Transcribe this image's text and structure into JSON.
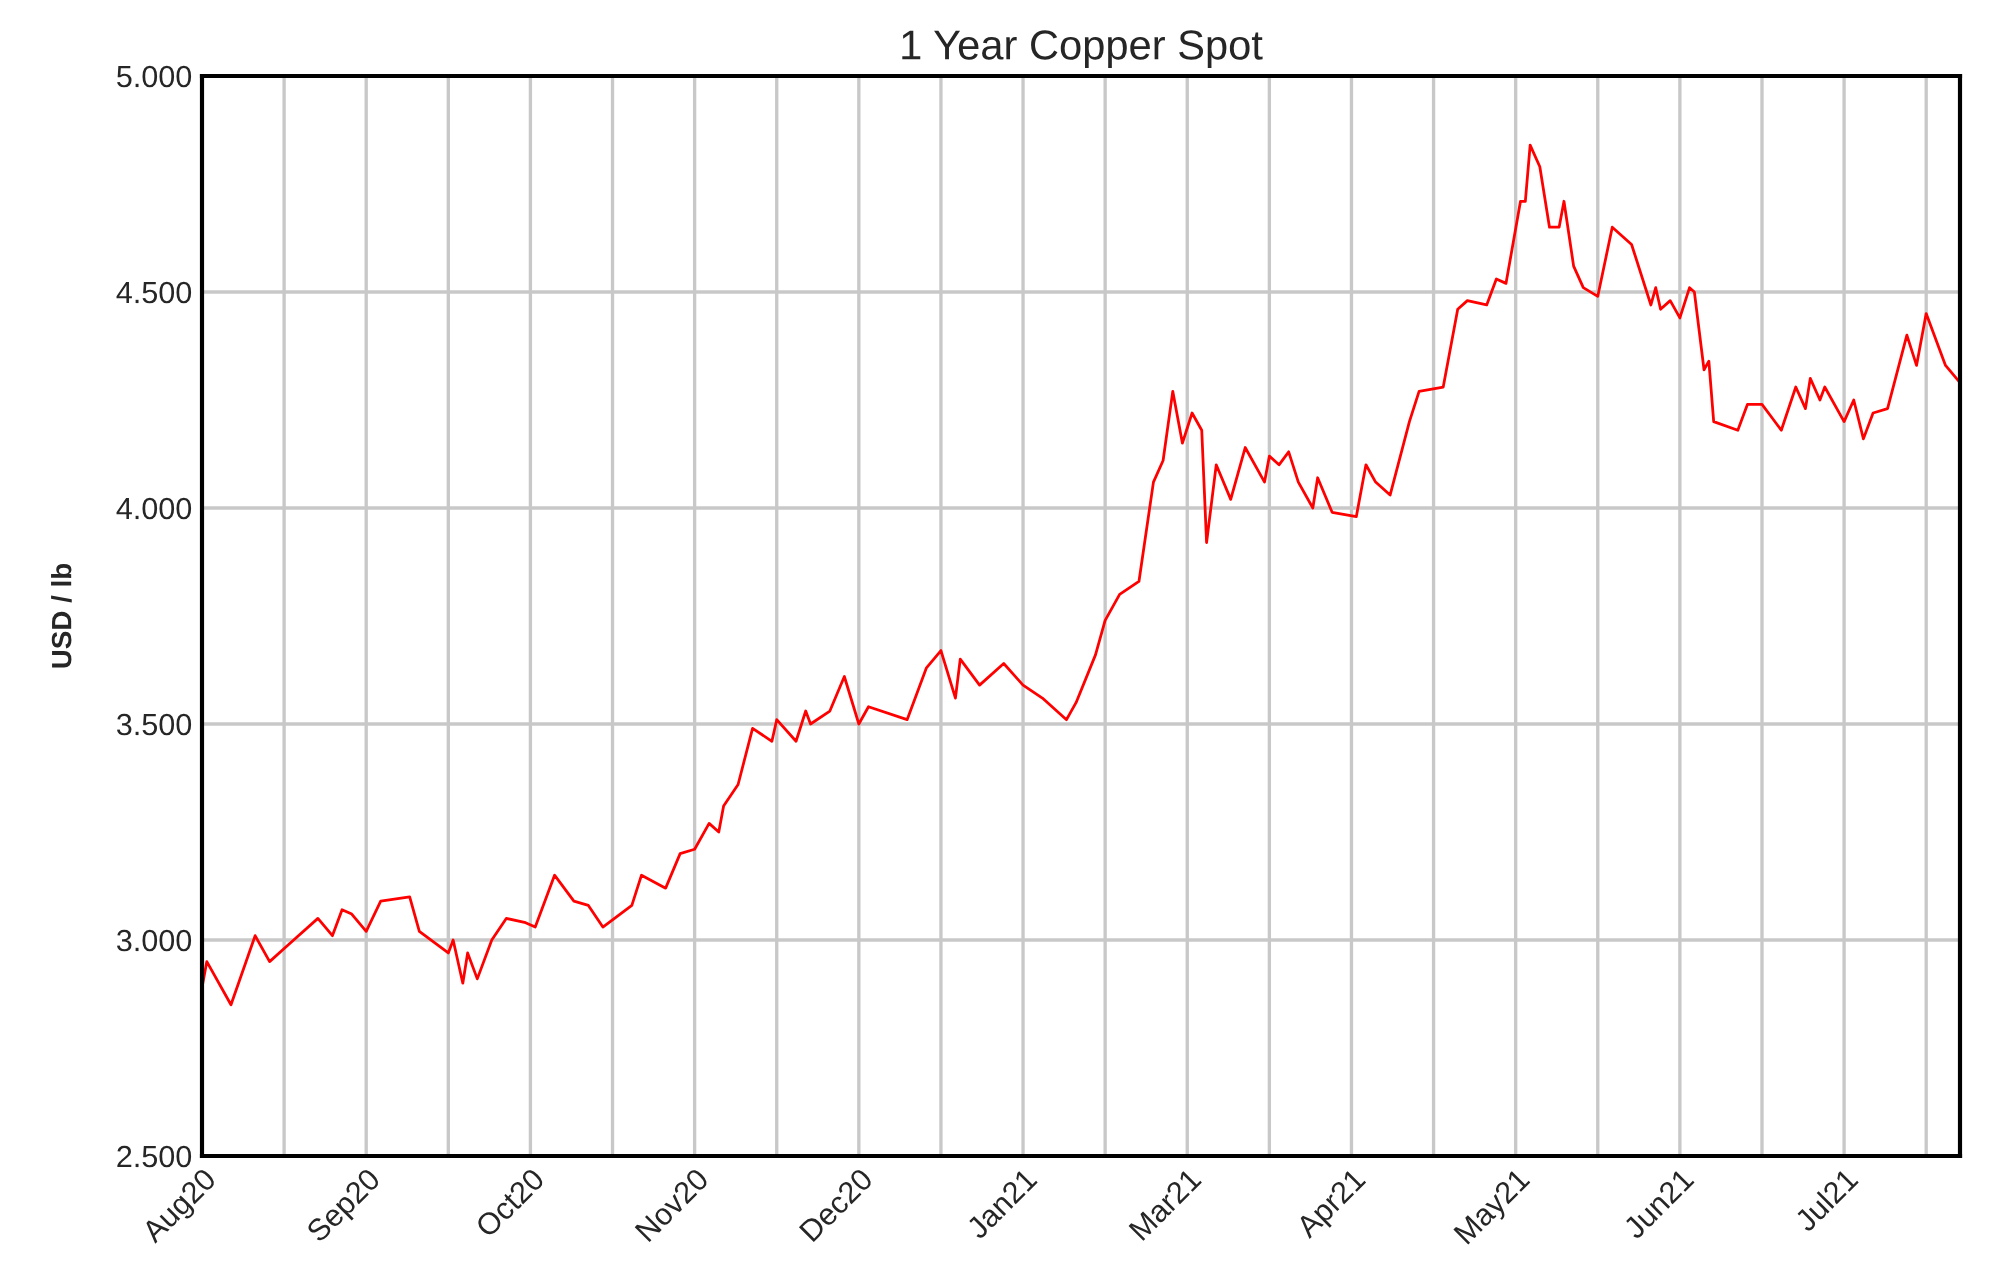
{
  "chart_data": {
    "type": "line",
    "title": "1 Year Copper Spot",
    "ylabel": "USD / lb",
    "xlim": [
      "2020-08-14",
      "2021-08-13"
    ],
    "ylim": [
      2.5,
      5.0
    ],
    "xticks": [
      {
        "value": "2020-08-14",
        "label": "Aug20"
      },
      {
        "value": "2020-08-31",
        "label": null
      },
      {
        "value": "2020-09-17",
        "label": "Sep20"
      },
      {
        "value": "2020-10-04",
        "label": null
      },
      {
        "value": "2020-10-21",
        "label": "Oct20"
      },
      {
        "value": "2020-11-07",
        "label": null
      },
      {
        "value": "2020-11-24",
        "label": "Nov20"
      },
      {
        "value": "2020-12-11",
        "label": null
      },
      {
        "value": "2020-12-28",
        "label": "Dec20"
      },
      {
        "value": "2021-01-14",
        "label": null
      },
      {
        "value": "2021-01-31",
        "label": "Jan21"
      },
      {
        "value": "2021-02-17",
        "label": null
      },
      {
        "value": "2021-03-06",
        "label": "Mar21"
      },
      {
        "value": "2021-03-23",
        "label": null
      },
      {
        "value": "2021-04-09",
        "label": "Apr21"
      },
      {
        "value": "2021-04-26",
        "label": null
      },
      {
        "value": "2021-05-13",
        "label": "May21"
      },
      {
        "value": "2021-05-30",
        "label": null
      },
      {
        "value": "2021-06-16",
        "label": "Jun21"
      },
      {
        "value": "2021-07-03",
        "label": null
      },
      {
        "value": "2021-07-20",
        "label": "Jul21"
      },
      {
        "value": "2021-08-06",
        "label": null
      }
    ],
    "yticks": [
      {
        "value": 2.5,
        "label": "2.500"
      },
      {
        "value": 3.0,
        "label": "3.000"
      },
      {
        "value": 3.5,
        "label": "3.500"
      },
      {
        "value": 4.0,
        "label": "4.000"
      },
      {
        "value": 4.5,
        "label": "4.500"
      },
      {
        "value": 5.0,
        "label": "5.000"
      }
    ],
    "grid": true,
    "marker": "none",
    "line_style": "solid",
    "series": [
      {
        "color": "#ff0000",
        "x": [
          "2020-08-14",
          "2020-08-15",
          "2020-08-20",
          "2020-08-25",
          "2020-08-28",
          "2020-09-01",
          "2020-09-07",
          "2020-09-10",
          "2020-09-12",
          "2020-09-14",
          "2020-09-17",
          "2020-09-20",
          "2020-09-26",
          "2020-09-28",
          "2020-10-04",
          "2020-10-05",
          "2020-10-07",
          "2020-10-08",
          "2020-10-10",
          "2020-10-13",
          "2020-10-16",
          "2020-10-20",
          "2020-10-22",
          "2020-10-26",
          "2020-10-30",
          "2020-11-02",
          "2020-11-05",
          "2020-11-11",
          "2020-11-13",
          "2020-11-18",
          "2020-11-21",
          "2020-11-24",
          "2020-11-27",
          "2020-11-29",
          "2020-11-30",
          "2020-12-03",
          "2020-12-06",
          "2020-12-10",
          "2020-12-11",
          "2020-12-15",
          "2020-12-17",
          "2020-12-18",
          "2020-12-22",
          "2020-12-25",
          "2020-12-28",
          "2020-12-30",
          "2021-01-07",
          "2021-01-11",
          "2021-01-14",
          "2021-01-17",
          "2021-01-18",
          "2021-01-22",
          "2021-01-27",
          "2021-01-31",
          "2021-02-04",
          "2021-02-09",
          "2021-02-11",
          "2021-02-15",
          "2021-02-17",
          "2021-02-20",
          "2021-02-24",
          "2021-02-27",
          "2021-03-01",
          "2021-03-03",
          "2021-03-05",
          "2021-03-07",
          "2021-03-09",
          "2021-03-10",
          "2021-03-12",
          "2021-03-15",
          "2021-03-18",
          "2021-03-22",
          "2021-03-23",
          "2021-03-25",
          "2021-03-27",
          "2021-03-29",
          "2021-04-01",
          "2021-04-02",
          "2021-04-05",
          "2021-04-10",
          "2021-04-12",
          "2021-04-14",
          "2021-04-17",
          "2021-04-21",
          "2021-04-23",
          "2021-04-28",
          "2021-05-01",
          "2021-05-03",
          "2021-05-07",
          "2021-05-09",
          "2021-05-11",
          "2021-05-14",
          "2021-05-15",
          "2021-05-16",
          "2021-05-18",
          "2021-05-20",
          "2021-05-22",
          "2021-05-23",
          "2021-05-25",
          "2021-05-27",
          "2021-05-30",
          "2021-06-02",
          "2021-06-06",
          "2021-06-10",
          "2021-06-11",
          "2021-06-12",
          "2021-06-14",
          "2021-06-16",
          "2021-06-18",
          "2021-06-19",
          "2021-06-21",
          "2021-06-22",
          "2021-06-23",
          "2021-06-28",
          "2021-06-30",
          "2021-07-03",
          "2021-07-05",
          "2021-07-07",
          "2021-07-10",
          "2021-07-12",
          "2021-07-13",
          "2021-07-15",
          "2021-07-16",
          "2021-07-20",
          "2021-07-22",
          "2021-07-24",
          "2021-07-26",
          "2021-07-29",
          "2021-08-02",
          "2021-08-04",
          "2021-08-06",
          "2021-08-10",
          "2021-08-13"
        ],
        "values": [
          2.89,
          2.95,
          2.85,
          3.01,
          2.95,
          2.99,
          3.05,
          3.01,
          3.07,
          3.06,
          3.02,
          3.09,
          3.1,
          3.02,
          2.97,
          3.0,
          2.9,
          2.97,
          2.91,
          3.0,
          3.05,
          3.04,
          3.03,
          3.15,
          3.09,
          3.08,
          3.03,
          3.08,
          3.15,
          3.12,
          3.2,
          3.21,
          3.27,
          3.25,
          3.31,
          3.36,
          3.49,
          3.46,
          3.51,
          3.46,
          3.53,
          3.5,
          3.53,
          3.61,
          3.5,
          3.54,
          3.51,
          3.63,
          3.67,
          3.56,
          3.65,
          3.59,
          3.64,
          3.59,
          3.56,
          3.51,
          3.55,
          3.66,
          3.74,
          3.8,
          3.83,
          4.06,
          4.11,
          4.27,
          4.15,
          4.22,
          4.18,
          3.92,
          4.1,
          4.02,
          4.14,
          4.06,
          4.12,
          4.1,
          4.13,
          4.06,
          4.0,
          4.07,
          3.99,
          3.98,
          4.1,
          4.06,
          4.03,
          4.2,
          4.27,
          4.28,
          4.46,
          4.48,
          4.47,
          4.53,
          4.52,
          4.71,
          4.71,
          4.84,
          4.79,
          4.65,
          4.65,
          4.71,
          4.56,
          4.51,
          4.49,
          4.65,
          4.61,
          4.47,
          4.51,
          4.46,
          4.48,
          4.44,
          4.51,
          4.5,
          4.32,
          4.34,
          4.2,
          4.18,
          4.24,
          4.24,
          4.21,
          4.18,
          4.28,
          4.23,
          4.3,
          4.25,
          4.28,
          4.2,
          4.25,
          4.16,
          4.22,
          4.23,
          4.4,
          4.33,
          4.45,
          4.33,
          4.29
        ]
      }
    ]
  }
}
